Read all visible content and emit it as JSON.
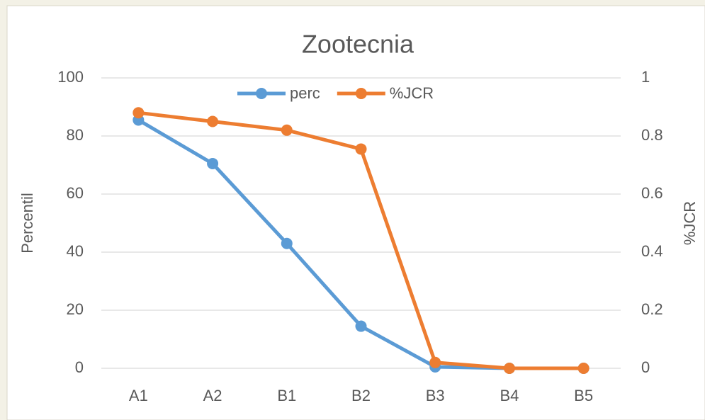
{
  "chart_data": {
    "type": "line",
    "title": "Zootecnia",
    "categories": [
      "A1",
      "A2",
      "B1",
      "B2",
      "B3",
      "B4",
      "B5"
    ],
    "series": [
      {
        "name": "perc",
        "color": "#5b9bd5",
        "values": [
          85.5,
          70.5,
          43,
          14.5,
          0.5,
          0,
          0
        ]
      },
      {
        "name": "%JCR",
        "color": "#ed7d31",
        "axis": "y2",
        "values": [
          0.88,
          0.85,
          0.82,
          0.755,
          0.02,
          0,
          0
        ]
      }
    ],
    "y_label": "Percentil",
    "y2_label": "%JCR",
    "ylim": [
      0,
      100
    ],
    "yticks": [
      0,
      20,
      40,
      60,
      80,
      100
    ],
    "y2lim": [
      0,
      1
    ],
    "y2ticks": [
      0,
      0.2,
      0.4,
      0.6,
      0.8,
      1
    ],
    "grid": true,
    "legend": "top"
  }
}
